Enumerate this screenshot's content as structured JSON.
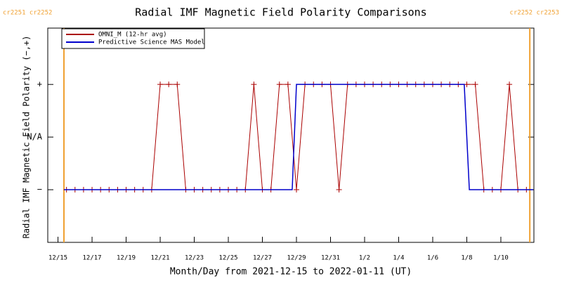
{
  "chart_data": {
    "type": "line",
    "title": "Radial IMF Magnetic Field Polarity Comparisons",
    "x_label": "Month/Day from 2021-12-15 to 2022-01-11 (UT)",
    "y_label": "Radial IMF Magnetic Field Polarity (−,+)",
    "xlim": [
      -0.6,
      27.94
    ],
    "ylim": [
      -2,
      2.07
    ],
    "xticks": [
      {
        "value": 0,
        "label": "12/15"
      },
      {
        "value": 2,
        "label": "12/17"
      },
      {
        "value": 4,
        "label": "12/19"
      },
      {
        "value": 6,
        "label": "12/21"
      },
      {
        "value": 8,
        "label": "12/23"
      },
      {
        "value": 10,
        "label": "12/25"
      },
      {
        "value": 12,
        "label": "12/27"
      },
      {
        "value": 14,
        "label": "12/29"
      },
      {
        "value": 16,
        "label": "12/31"
      },
      {
        "value": 18,
        "label": "1/2"
      },
      {
        "value": 20,
        "label": "1/4"
      },
      {
        "value": 22,
        "label": "1/6"
      },
      {
        "value": 24,
        "label": "1/8"
      },
      {
        "value": 26,
        "label": "1/10"
      }
    ],
    "yticks": [
      {
        "value": 1,
        "label": "+"
      },
      {
        "value": 0,
        "label": "N/A"
      },
      {
        "value": -1,
        "label": "−"
      }
    ],
    "legend": "upper left",
    "series": [
      {
        "name": "OMNI_M (12-hr avg)",
        "color": "#aa0000",
        "markers": true,
        "x": [
          0.5,
          1,
          1.5,
          2,
          2.5,
          3,
          3.5,
          4,
          4.5,
          5,
          5.5,
          6,
          6.5,
          7,
          7.5,
          8,
          8.5,
          9,
          9.5,
          10,
          10.5,
          11,
          11.5,
          12,
          12.5,
          13,
          13.5,
          14,
          14.5,
          15,
          15.5,
          16,
          16.5,
          17,
          17.5,
          18,
          18.5,
          19,
          19.5,
          20,
          20.5,
          21,
          21.5,
          22,
          22.5,
          23,
          23.5,
          24,
          24.5,
          25,
          25.5,
          26,
          26.5,
          27,
          27.5
        ],
        "values": [
          -1,
          -1,
          -1,
          -1,
          -1,
          -1,
          -1,
          -1,
          -1,
          -1,
          -1,
          1,
          1,
          1,
          -1,
          -1,
          -1,
          -1,
          -1,
          -1,
          -1,
          -1,
          1,
          -1,
          -1,
          1,
          1,
          -1,
          1,
          1,
          1,
          1,
          -1,
          1,
          1,
          1,
          1,
          1,
          1,
          1,
          1,
          1,
          1,
          1,
          1,
          1,
          1,
          1,
          1,
          -1,
          -1,
          -1,
          1,
          -1,
          -1
        ]
      },
      {
        "name": "Predictive Science MAS Model",
        "color": "#0000cc",
        "markers": false,
        "x": [
          0.35,
          13.75,
          14.0,
          23.85,
          24.15,
          27.9
        ],
        "values": [
          -1,
          -1,
          1,
          1,
          -1,
          -1
        ]
      }
    ],
    "vlines": [
      {
        "x": 0.35,
        "label": "cr2251 cr2252",
        "color": "#f0a030"
      },
      {
        "x": 27.7,
        "label": "cr2252 cr2253",
        "color": "#f0a030"
      }
    ]
  }
}
